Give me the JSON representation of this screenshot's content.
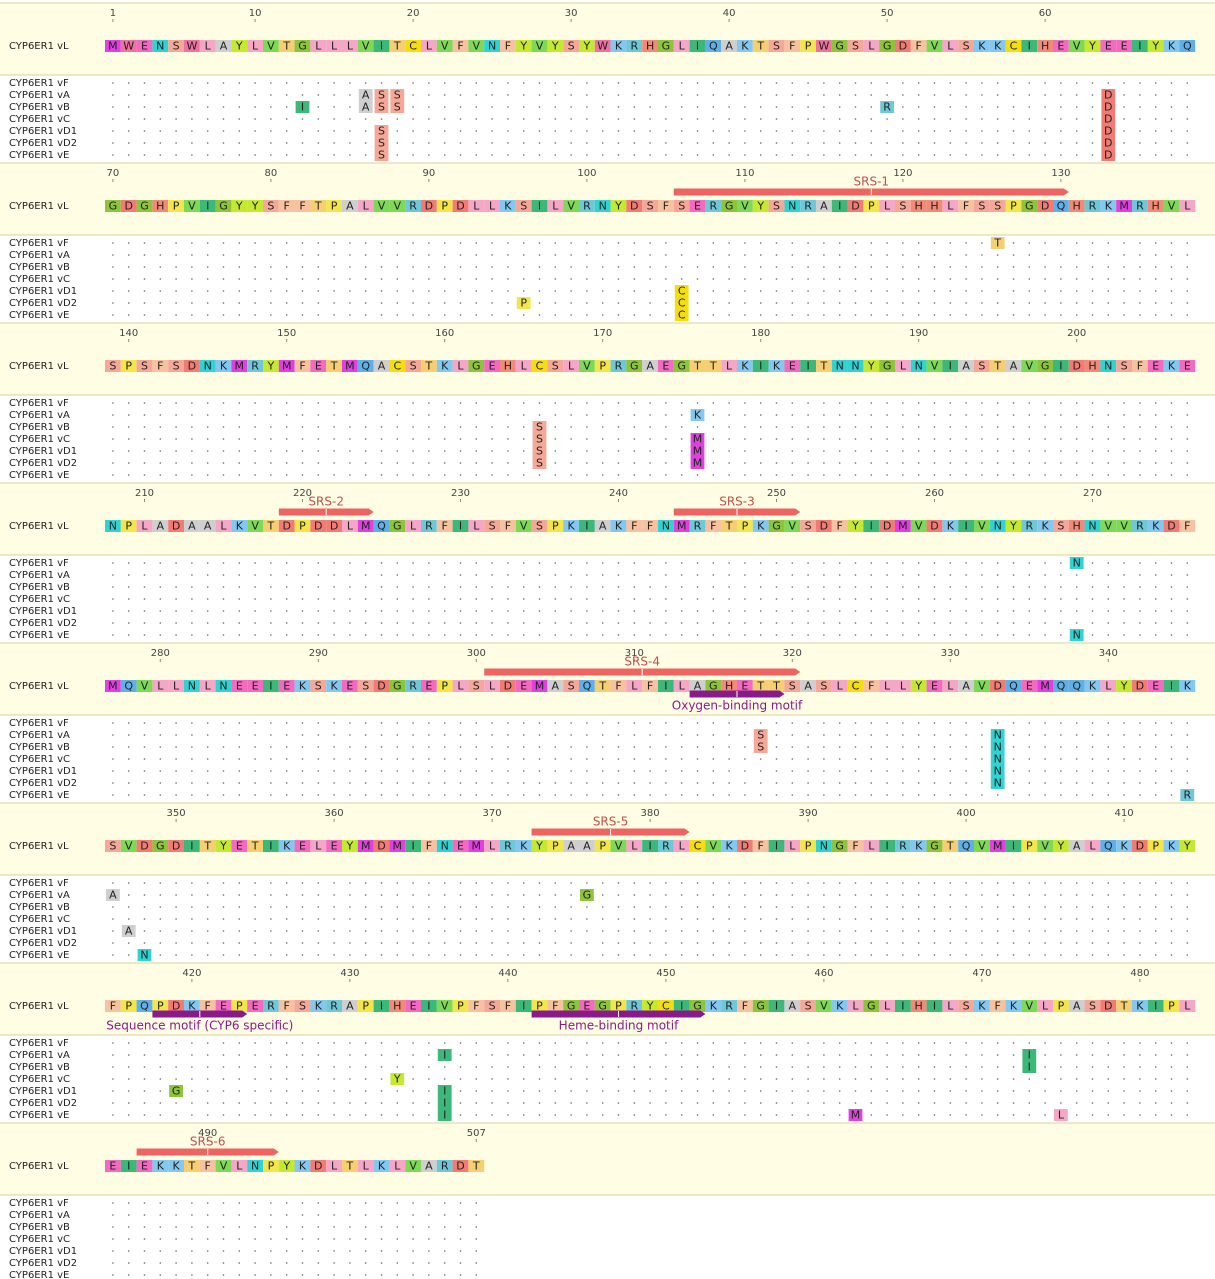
{
  "reference": {
    "name": "CYP6ER1 vL",
    "sequence": "MWENSWLAYLVTGLLLVITCLVFVNFYVYSYWKRHGLIQAKTSFPWGSLGDFVLSKKCIHEVYEEIYKQGDGHPVIGYYSFFTPALVVRDPDLLKSILVRNYDSFSERGVYSNRAIDPLSHHLFSSPGDQHRKMRHVLSPSFSDNKMRYMFETMQACSTKLGEHLCSLVPRGAEGTTLKIKEITNNYGLNVIASTAVGIDHNSFEKENPLADAALKVTDPDDLMQGLRFILSFVSPKIAKFFNMRFTPKGVSDFYIDMVDKIVNYRKSHNVVRKDFMQVLLNLNEEIEKSKESDGREPLSLDEMASQTFLFILAGHETTSASLCFLLYELAVDQEMQQKLYDEIKSVDGDITYETIKELEYMDMIFNEMLRKYPAAPVLIRLCVKDFILPNGFLIRKGTQVMIPVYALQKDPKYFPQPDKFEPERFSKRAPIHEIVPFSFIPFGEGPRYCIGKRFGIASVKLGLIHILSKFKVLPASDTKIPLEIEKKTFVLNPYKDLTLKLVARDT"
  },
  "ticks": [
    1,
    10,
    20,
    30,
    40,
    50,
    60,
    70,
    80,
    90,
    100,
    110,
    120,
    130,
    140,
    150,
    160,
    170,
    180,
    190,
    200,
    210,
    220,
    230,
    240,
    250,
    260,
    270,
    280,
    290,
    300,
    310,
    320,
    330,
    340,
    350,
    360,
    370,
    380,
    390,
    400,
    410,
    420,
    430,
    440,
    450,
    460,
    470,
    480,
    490,
    507
  ],
  "variants": [
    {
      "name": "CYP6ER1 vF",
      "substitutions": [
        {
          "position": 126,
          "residue": "T"
        },
        {
          "position": 269,
          "residue": "N"
        }
      ]
    },
    {
      "name": "CYP6ER1 vA",
      "substitutions": [
        {
          "position": 17,
          "residue": "A"
        },
        {
          "position": 18,
          "residue": "S"
        },
        {
          "position": 19,
          "residue": "S"
        },
        {
          "position": 64,
          "residue": "D"
        },
        {
          "position": 176,
          "residue": "K"
        },
        {
          "position": 318,
          "residue": "S"
        },
        {
          "position": 333,
          "residue": "N"
        },
        {
          "position": 346,
          "residue": "A"
        },
        {
          "position": 376,
          "residue": "G"
        },
        {
          "position": 436,
          "residue": "I"
        },
        {
          "position": 473,
          "residue": "I"
        }
      ]
    },
    {
      "name": "CYP6ER1 vB",
      "substitutions": [
        {
          "position": 13,
          "residue": "I"
        },
        {
          "position": 17,
          "residue": "A"
        },
        {
          "position": 18,
          "residue": "S"
        },
        {
          "position": 19,
          "residue": "S"
        },
        {
          "position": 50,
          "residue": "R"
        },
        {
          "position": 64,
          "residue": "D"
        },
        {
          "position": 166,
          "residue": "S"
        },
        {
          "position": 318,
          "residue": "S"
        },
        {
          "position": 333,
          "residue": "N"
        },
        {
          "position": 473,
          "residue": "I"
        }
      ]
    },
    {
      "name": "CYP6ER1 vC",
      "substitutions": [
        {
          "position": 64,
          "residue": "D"
        },
        {
          "position": 166,
          "residue": "S"
        },
        {
          "position": 176,
          "residue": "M"
        },
        {
          "position": 333,
          "residue": "N"
        },
        {
          "position": 433,
          "residue": "Y"
        }
      ]
    },
    {
      "name": "CYP6ER1 vD1",
      "substitutions": [
        {
          "position": 18,
          "residue": "S"
        },
        {
          "position": 64,
          "residue": "D"
        },
        {
          "position": 106,
          "residue": "C"
        },
        {
          "position": 166,
          "residue": "S"
        },
        {
          "position": 176,
          "residue": "M"
        },
        {
          "position": 333,
          "residue": "N"
        },
        {
          "position": 347,
          "residue": "A"
        },
        {
          "position": 419,
          "residue": "G"
        },
        {
          "position": 436,
          "residue": "I"
        }
      ]
    },
    {
      "name": "CYP6ER1 vD2",
      "substitutions": [
        {
          "position": 18,
          "residue": "S"
        },
        {
          "position": 64,
          "residue": "D"
        },
        {
          "position": 96,
          "residue": "P"
        },
        {
          "position": 106,
          "residue": "C"
        },
        {
          "position": 166,
          "residue": "S"
        },
        {
          "position": 176,
          "residue": "M"
        },
        {
          "position": 333,
          "residue": "N"
        },
        {
          "position": 436,
          "residue": "I"
        }
      ]
    },
    {
      "name": "CYP6ER1 vE",
      "substitutions": [
        {
          "position": 18,
          "residue": "S"
        },
        {
          "position": 64,
          "residue": "D"
        },
        {
          "position": 106,
          "residue": "C"
        },
        {
          "position": 269,
          "residue": "N"
        },
        {
          "position": 345,
          "residue": "R"
        },
        {
          "position": 348,
          "residue": "N"
        },
        {
          "position": 436,
          "residue": "I"
        },
        {
          "position": 462,
          "residue": "M"
        },
        {
          "position": 475,
          "residue": "L"
        }
      ]
    }
  ],
  "features": [
    {
      "label": "SRS-1",
      "start": 106,
      "end": 130,
      "kind": "srs",
      "color": "#ee6461"
    },
    {
      "label": "SRS-2",
      "start": 219,
      "end": 224,
      "kind": "srs",
      "color": "#ee6461"
    },
    {
      "label": "SRS-3",
      "start": 244,
      "end": 251,
      "kind": "srs",
      "color": "#ee6461"
    },
    {
      "label": "SRS-4",
      "start": 301,
      "end": 320,
      "kind": "srs",
      "color": "#ee6461"
    },
    {
      "label": "Oxygen-binding motif",
      "start": 314,
      "end": 319,
      "kind": "motif",
      "color": "#8a1a8a"
    },
    {
      "label": "SRS-5",
      "start": 373,
      "end": 382,
      "kind": "srs",
      "color": "#ee6461"
    },
    {
      "label": "Sequence motif (CYP6 specific)",
      "start": 418,
      "end": 423,
      "kind": "motif",
      "color": "#8a1a8a"
    },
    {
      "label": "Heme-binding motif",
      "start": 442,
      "end": 452,
      "kind": "motif",
      "color": "#8a1a8a"
    },
    {
      "label": "SRS-6",
      "start": 486,
      "end": 494,
      "kind": "srs",
      "color": "#ee6461"
    }
  ],
  "residues_per_row": 69,
  "residue_colors": {
    "A": "#cfcfcf",
    "C": "#f4dd10",
    "D": "#f27b73",
    "E": "#f26bc0",
    "F": "#f6c2a0",
    "G": "#8cc43c",
    "H": "#f28a78",
    "I": "#3cb878",
    "K": "#82c8f0",
    "L": "#f6a6c6",
    "M": "#e040e0",
    "N": "#30d2d2",
    "P": "#f2e64c",
    "Q": "#5fb0e8",
    "R": "#6ec8d8",
    "S": "#f6a898",
    "T": "#f6cf72",
    "V": "#7ed957",
    "W": "#f0709f",
    "Y": "#c5e830"
  }
}
